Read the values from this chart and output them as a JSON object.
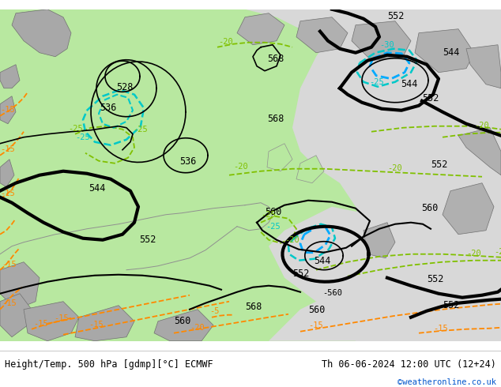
{
  "title_left": "Height/Temp. 500 hPa [gdmp][°C] ECMWF",
  "title_right": "Th 06-06-2024 12:00 UTC (12+24)",
  "credit": "©weatheronline.co.uk",
  "green_land": "#b8e8a0",
  "gray_sea": "#d8d8d8",
  "coast_gray": "#909090",
  "black": "#000000",
  "green_temp": "#80c000",
  "orange_temp": "#ff8800",
  "cyan_cold": "#00c8c8",
  "cyan_bright": "#00aaff",
  "blue_credit": "#0055cc",
  "footer_bg": "#ffffff",
  "figsize": [
    6.34,
    4.9
  ],
  "dpi": 100
}
